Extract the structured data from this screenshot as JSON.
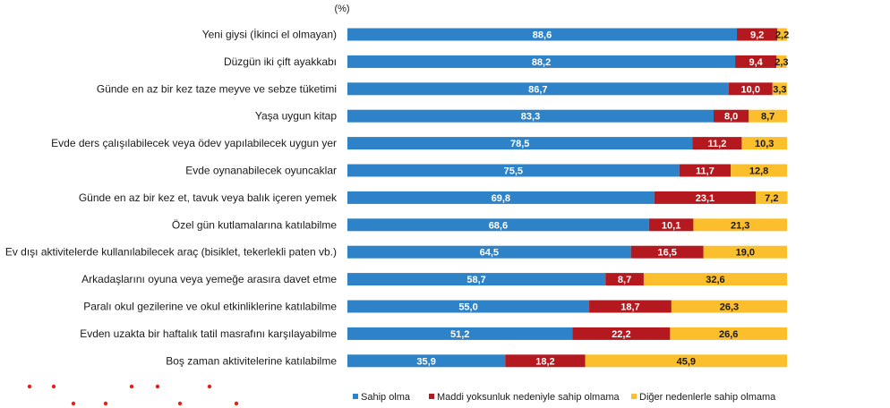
{
  "chart_data": {
    "type": "bar",
    "orientation": "horizontal",
    "stacked": true,
    "unit_label": "(%)",
    "xlim": [
      0,
      100
    ],
    "grid": false,
    "legend_position": "bottom-right",
    "categories": [
      "Yeni giysi (İkinci el olmayan)",
      "Düzgün iki çift ayakkabı",
      "Günde en az bir kez taze meyve ve sebze tüketimi",
      "Yaşa uygun kitap",
      "Evde ders çalışılabilecek veya ödev yapılabilecek uygun yer",
      "Evde oynanabilecek oyuncaklar",
      "Günde en az bir kez et, tavuk veya balık içeren yemek",
      "Özel gün kutlamalarına katılabilme",
      "Ev dışı aktivitelerde kullanılabilecek araç (bisiklet, tekerlekli paten vb.)",
      "Arkadaşlarını oyuna veya yemeğe arasıra davet etme",
      "Paralı okul gezilerine ve okul etkinliklerine katılabilme",
      "Evden uzakta bir haftalık tatil masrafını karşılayabilme",
      "Boş zaman aktivitelerine katılabilme"
    ],
    "series": [
      {
        "name": "Sahip olma",
        "color": "#2e82c8",
        "label_color": "#ffffff",
        "values": [
          88.6,
          88.2,
          86.7,
          83.3,
          78.5,
          75.5,
          69.8,
          68.6,
          64.5,
          58.7,
          55.0,
          51.2,
          35.9
        ],
        "labels": [
          "88,6",
          "88,2",
          "86,7",
          "83,3",
          "78,5",
          "75,5",
          "69,8",
          "68,6",
          "64,5",
          "58,7",
          "55,0",
          "51,2",
          "35,9"
        ]
      },
      {
        "name": "Maddi yoksunluk nedeniyle sahip olmama",
        "color": "#b3191e",
        "label_color": "#ffffff",
        "values": [
          9.2,
          9.4,
          10.0,
          8.0,
          11.2,
          11.7,
          23.1,
          10.1,
          16.5,
          8.7,
          18.7,
          22.2,
          18.2
        ],
        "labels": [
          "9,2",
          "9,4",
          "10,0",
          "8,0",
          "11,2",
          "11,7",
          "23,1",
          "10,1",
          "16,5",
          "8,7",
          "18,7",
          "22,2",
          "18,2"
        ]
      },
      {
        "name": "Diğer nedenlerle sahip olmama",
        "color": "#fbbe2c",
        "label_color": "#1a1a1a",
        "values": [
          2.2,
          2.3,
          3.3,
          8.7,
          10.3,
          12.8,
          7.2,
          21.3,
          19.0,
          32.6,
          26.3,
          26.6,
          45.9
        ],
        "labels": [
          "2,2",
          "2,3",
          "3,3",
          "8,7",
          "10,3",
          "12,8",
          "7,2",
          "21,3",
          "19,0",
          "32,6",
          "26,3",
          "26,6",
          "45,9"
        ]
      }
    ]
  },
  "decorations": {
    "dot_color": "#e2231a"
  }
}
